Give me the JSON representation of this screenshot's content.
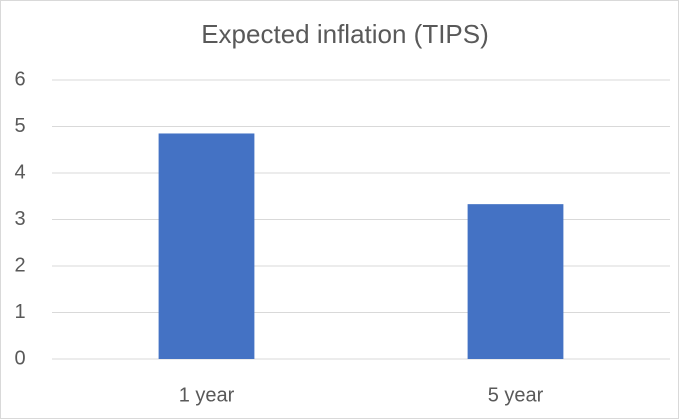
{
  "chart_data": {
    "type": "bar",
    "title": "Expected inflation (TIPS)",
    "categories": [
      "1 year",
      "5 year"
    ],
    "values": [
      4.85,
      3.33
    ],
    "color": "#4472c4",
    "ylim": [
      0,
      6
    ],
    "yticks": [
      0,
      1,
      2,
      3,
      4,
      5,
      6
    ],
    "grid": true
  }
}
